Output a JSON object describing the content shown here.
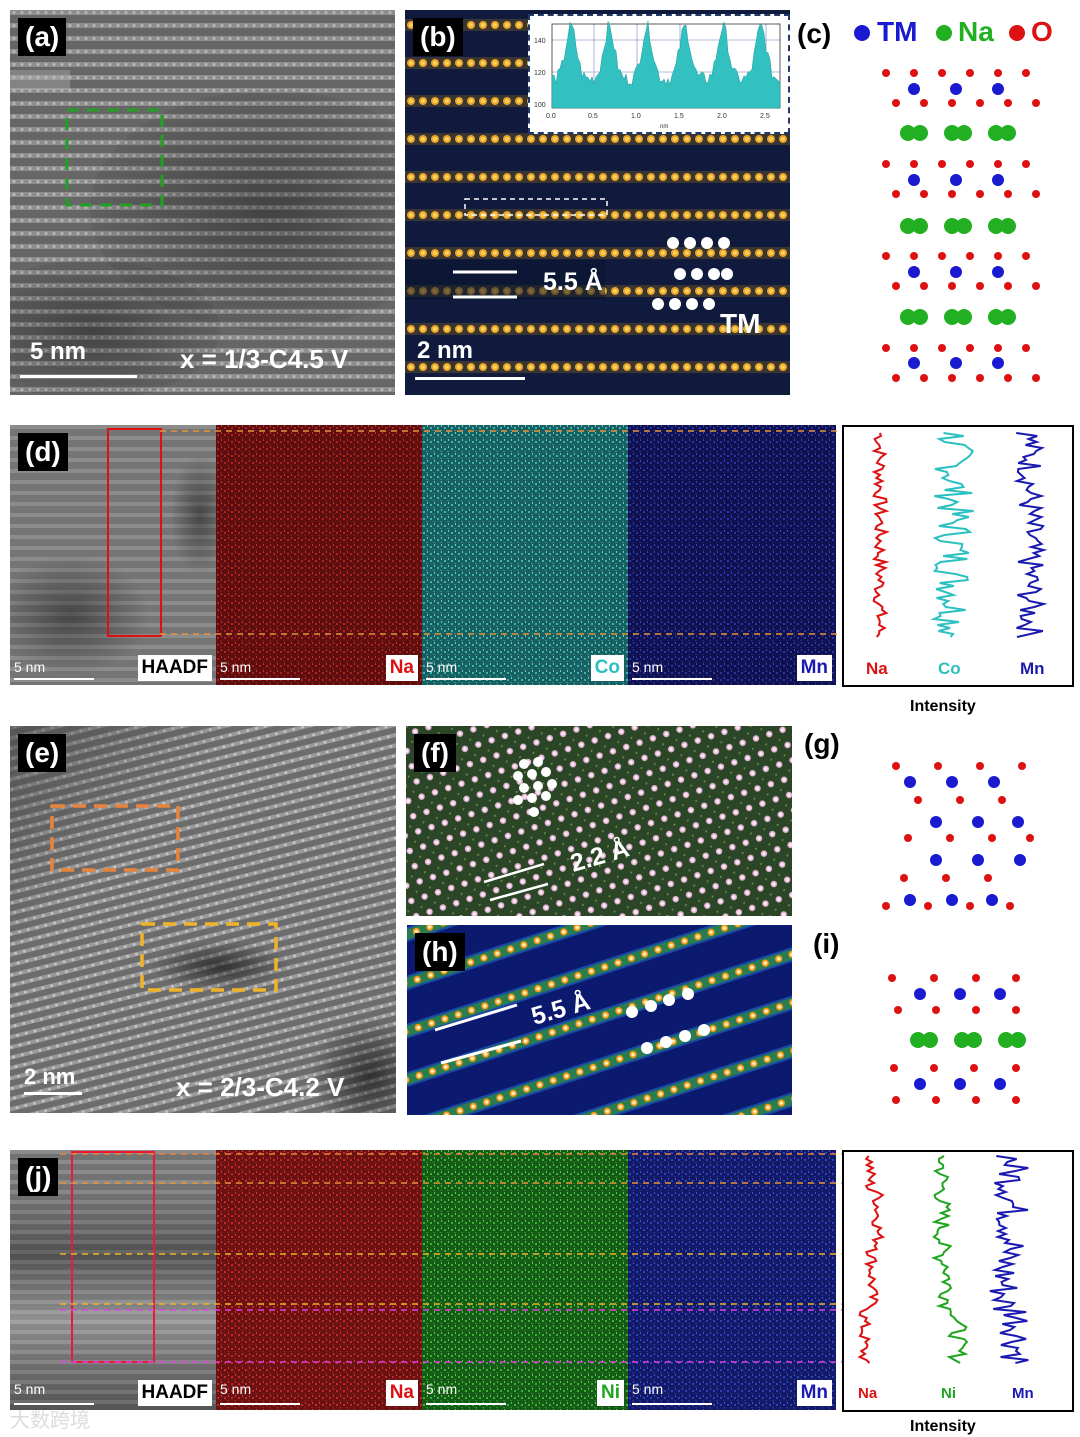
{
  "panels": {
    "a": {
      "label": "(a)",
      "scale": "5 nm",
      "condition": "x = 1/3-C4.5 V"
    },
    "b": {
      "label": "(b)",
      "scale": "2 nm",
      "spacing": "5.5 Å",
      "tm": "TM",
      "inset": {
        "yticks": [
          "140",
          "120",
          "100"
        ],
        "xticks": [
          "0.0",
          "0.5",
          "1.0",
          "1.5",
          "2.0",
          "2.5"
        ],
        "xunit": "nm"
      }
    },
    "c": {
      "label": "(c)",
      "legend": [
        "TM",
        "Na",
        "O"
      ]
    },
    "d": {
      "label": "(d)",
      "scale": "5 nm",
      "tags": [
        "HAADF",
        "Na",
        "Co",
        "Mn"
      ],
      "lines": [
        "Na",
        "Co",
        "Mn"
      ],
      "axis": "Intensity"
    },
    "e": {
      "label": "(e)",
      "scale": "2 nm",
      "condition": "x = 2/3-C4.2 V"
    },
    "f": {
      "label": "(f)",
      "spacing": "2.2 Å"
    },
    "g": {
      "label": "(g)"
    },
    "h": {
      "label": "(h)",
      "spacing": "5.5 Å"
    },
    "i": {
      "label": "(i)"
    },
    "j": {
      "label": "(j)",
      "scale": "5 nm",
      "tags": [
        "HAADF",
        "Na",
        "Ni",
        "Mn"
      ],
      "lines": [
        "Na",
        "Ni",
        "Mn"
      ],
      "axis": "Intensity"
    }
  },
  "colors": {
    "tm": "#1a1ad0",
    "na": "#22b022",
    "o": "#dd1111",
    "co": "#2cc0c0",
    "ni": "#1fa51f",
    "mn": "#1a1ab0"
  },
  "watermark": "大数跨境"
}
